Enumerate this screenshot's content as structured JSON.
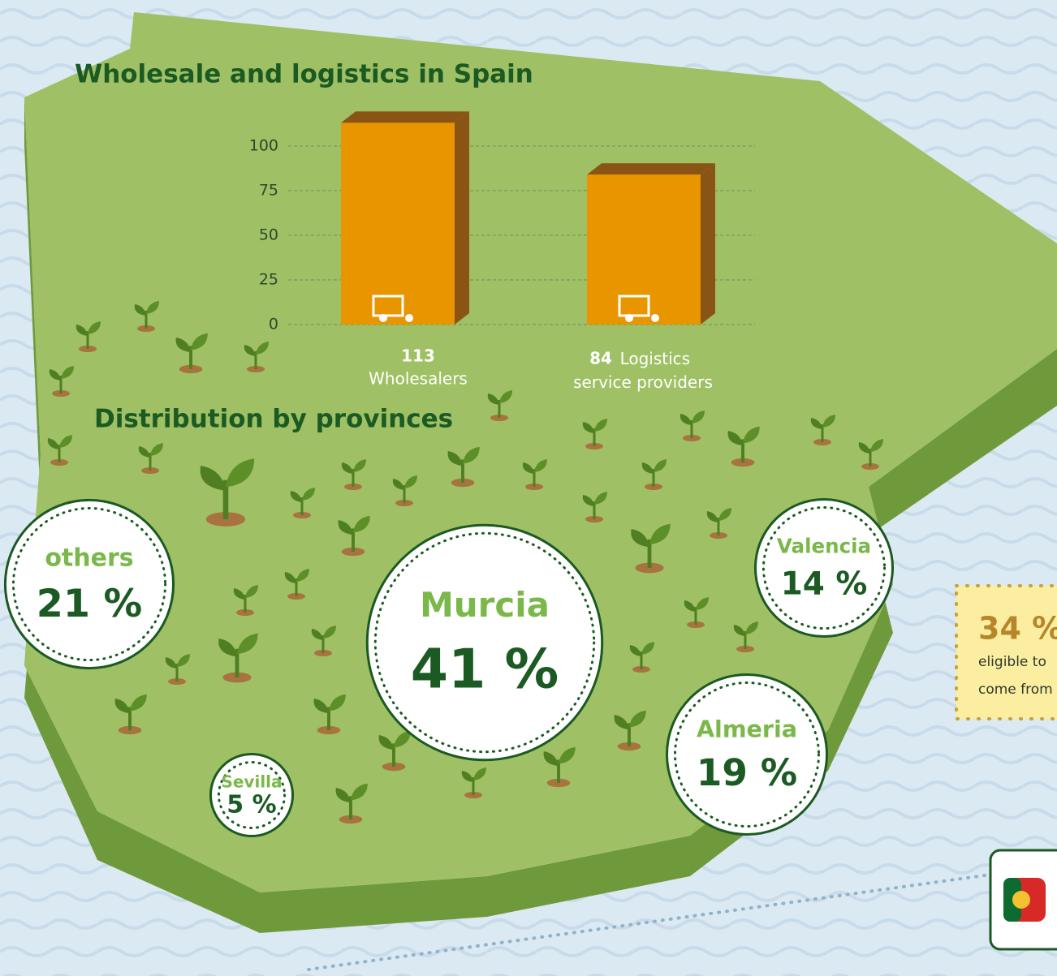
{
  "chart_data": [
    {
      "type": "bar",
      "title": "Wholesale and logistics in Spain",
      "categories": [
        "Wholesalers",
        "Logistics service providers"
      ],
      "values": [
        113,
        84
      ],
      "color": "#e89500",
      "ylim": [
        0,
        125
      ],
      "yticks": [
        0,
        25,
        50,
        75,
        100
      ],
      "grid": true
    },
    {
      "type": "bubble",
      "title": "Distribution by provinces",
      "categories": [
        "others",
        "Murcia",
        "Valencia",
        "Almeria",
        "Sevilla"
      ],
      "values": [
        21,
        41,
        14,
        19,
        5
      ],
      "value_labels": [
        "21 %",
        "41 %",
        "14 %",
        "19 %",
        "5 %"
      ]
    }
  ],
  "side_note": {
    "value_label": "34 %",
    "lines": [
      "eligible to",
      "come from"
    ]
  }
}
